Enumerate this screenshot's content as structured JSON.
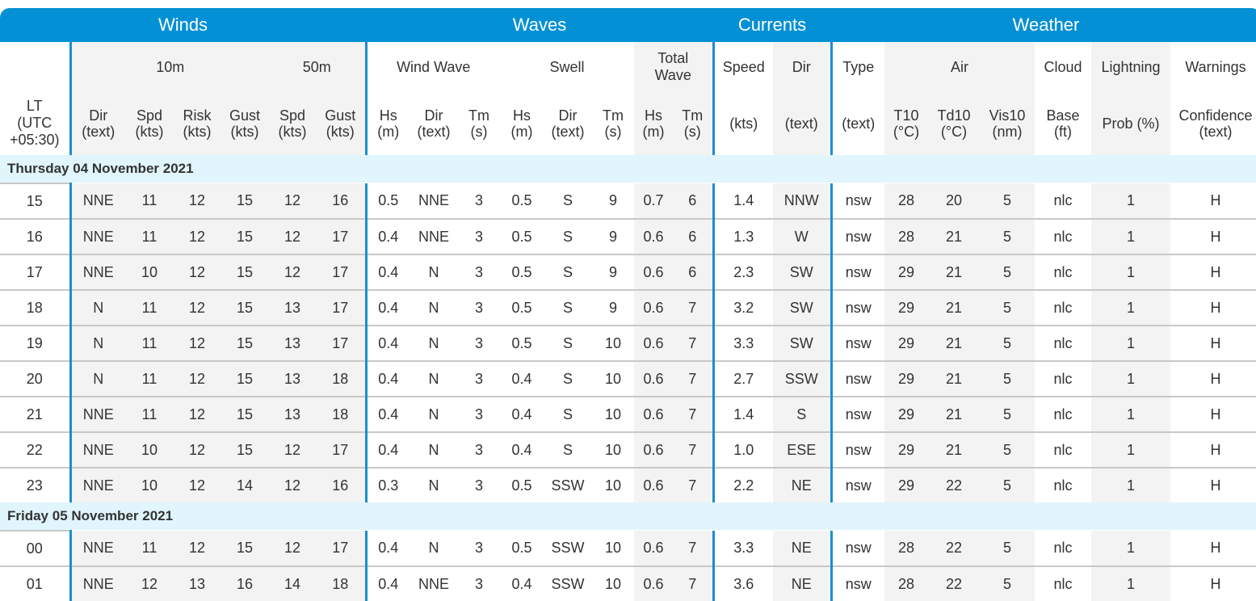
{
  "categories": [
    {
      "label": "Winds",
      "span": 7
    },
    {
      "label": "Waves",
      "span": 8
    },
    {
      "label": "Currents",
      "span": 2
    },
    {
      "label": "Weather",
      "span": 7
    }
  ],
  "subheaders": {
    "lt": "LT\n(UTC\n+05:30)",
    "winds_10m": "10m",
    "winds_50m": "50m",
    "wind_wave": "Wind Wave",
    "swell": "Swell",
    "total_wave": "Total\nWave",
    "currents_speed": "Speed",
    "currents_dir": "Dir",
    "type": "Type",
    "air": "Air",
    "cloud": "Cloud",
    "lightning": "Lightning",
    "warnings": "Warnings"
  },
  "units": [
    "Dir\n(text)",
    "Spd\n(kts)",
    "Risk\n(kts)",
    "Gust\n(kts)",
    "Spd\n(kts)",
    "Gust\n(kts)",
    "Hs\n(m)",
    "Dir\n(text)",
    "Tm\n(s)",
    "Hs\n(m)",
    "Dir\n(text)",
    "Tm\n(s)",
    "Hs\n(m)",
    "Tm\n(s)",
    "(kts)",
    "(text)",
    "(text)",
    "T10\n(°C)",
    "Td10\n(°C)",
    "Vis10\n(nm)",
    "Base\n(ft)",
    "Prob (%)",
    "Confidence\n(text)"
  ],
  "days": [
    {
      "label": "Thursday 04 November 2021",
      "rows": [
        [
          "15",
          "NNE",
          "11",
          "12",
          "15",
          "12",
          "16",
          "0.5",
          "NNE",
          "3",
          "0.5",
          "S",
          "9",
          "0.7",
          "6",
          "1.4",
          "NNW",
          "nsw",
          "28",
          "20",
          "5",
          "nlc",
          "1",
          "H"
        ],
        [
          "16",
          "NNE",
          "11",
          "12",
          "15",
          "12",
          "17",
          "0.4",
          "NNE",
          "3",
          "0.5",
          "S",
          "9",
          "0.6",
          "6",
          "1.3",
          "W",
          "nsw",
          "28",
          "21",
          "5",
          "nlc",
          "1",
          "H"
        ],
        [
          "17",
          "NNE",
          "10",
          "12",
          "15",
          "12",
          "17",
          "0.4",
          "N",
          "3",
          "0.5",
          "S",
          "9",
          "0.6",
          "6",
          "2.3",
          "SW",
          "nsw",
          "29",
          "21",
          "5",
          "nlc",
          "1",
          "H"
        ],
        [
          "18",
          "N",
          "11",
          "12",
          "15",
          "13",
          "17",
          "0.4",
          "N",
          "3",
          "0.5",
          "S",
          "9",
          "0.6",
          "7",
          "3.2",
          "SW",
          "nsw",
          "29",
          "21",
          "5",
          "nlc",
          "1",
          "H"
        ],
        [
          "19",
          "N",
          "11",
          "12",
          "15",
          "13",
          "17",
          "0.4",
          "N",
          "3",
          "0.5",
          "S",
          "10",
          "0.6",
          "7",
          "3.3",
          "SW",
          "nsw",
          "29",
          "21",
          "5",
          "nlc",
          "1",
          "H"
        ],
        [
          "20",
          "N",
          "11",
          "12",
          "15",
          "13",
          "18",
          "0.4",
          "N",
          "3",
          "0.4",
          "S",
          "10",
          "0.6",
          "7",
          "2.7",
          "SSW",
          "nsw",
          "29",
          "21",
          "5",
          "nlc",
          "1",
          "H"
        ],
        [
          "21",
          "NNE",
          "11",
          "12",
          "15",
          "13",
          "18",
          "0.4",
          "N",
          "3",
          "0.4",
          "S",
          "10",
          "0.6",
          "7",
          "1.4",
          "S",
          "nsw",
          "29",
          "21",
          "5",
          "nlc",
          "1",
          "H"
        ],
        [
          "22",
          "NNE",
          "10",
          "12",
          "15",
          "12",
          "17",
          "0.4",
          "N",
          "3",
          "0.4",
          "S",
          "10",
          "0.6",
          "7",
          "1.0",
          "ESE",
          "nsw",
          "29",
          "21",
          "5",
          "nlc",
          "1",
          "H"
        ],
        [
          "23",
          "NNE",
          "10",
          "12",
          "14",
          "12",
          "16",
          "0.3",
          "N",
          "3",
          "0.5",
          "SSW",
          "10",
          "0.6",
          "7",
          "2.2",
          "NE",
          "nsw",
          "29",
          "22",
          "5",
          "nlc",
          "1",
          "H"
        ]
      ]
    },
    {
      "label": "Friday 05 November 2021",
      "rows": [
        [
          "00",
          "NNE",
          "11",
          "12",
          "15",
          "12",
          "17",
          "0.4",
          "N",
          "3",
          "0.5",
          "SSW",
          "10",
          "0.6",
          "7",
          "3.3",
          "NE",
          "nsw",
          "28",
          "22",
          "5",
          "nlc",
          "1",
          "H"
        ],
        [
          "01",
          "NNE",
          "12",
          "13",
          "16",
          "14",
          "18",
          "0.4",
          "NNE",
          "3",
          "0.4",
          "SSW",
          "10",
          "0.6",
          "7",
          "3.6",
          "NE",
          "nsw",
          "28",
          "22",
          "5",
          "nlc",
          "1",
          "H"
        ]
      ]
    }
  ]
}
